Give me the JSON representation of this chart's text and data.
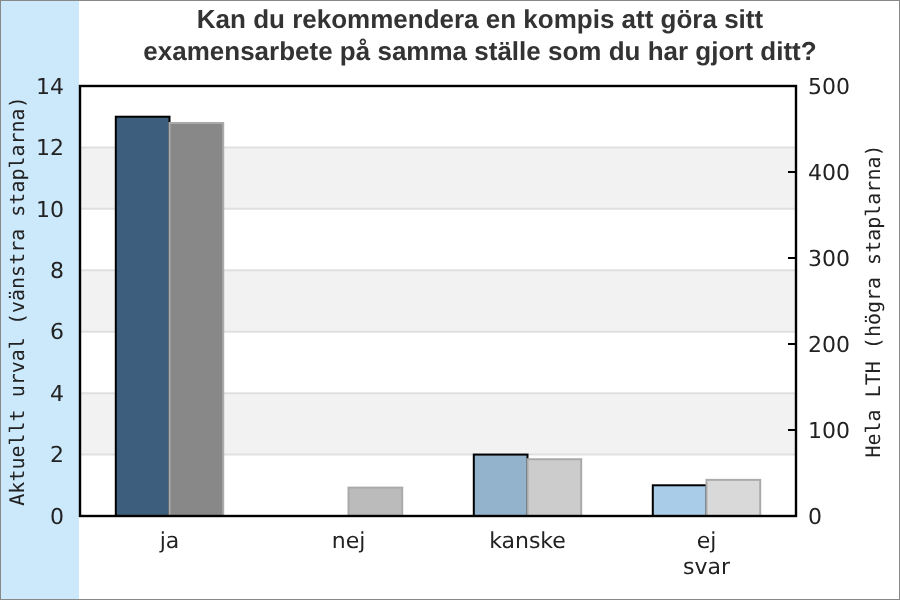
{
  "chart_data": {
    "type": "bar",
    "title": "Kan du rekommendera en kompis att göra sitt examensarbete på samma ställe som du har gjort ditt?",
    "ylabel": "Aktuellt urval (vänstra staplarna)",
    "y2label": "Hela LTH (högra staplarna)",
    "categories": [
      "ja",
      "nej",
      "kanske",
      "ej svar"
    ],
    "series": [
      {
        "values": [
          13,
          0,
          2,
          1
        ],
        "colors": [
          "#3d5f7d",
          "#3d5f7d",
          "#93b2cc",
          "#a9cde9"
        ]
      },
      {
        "values": [
          457,
          33,
          66,
          42
        ],
        "colors": [
          "#888888",
          "#bbbbbb",
          "#cccccc",
          "#d9d9d9"
        ],
        "axis": "y2"
      }
    ],
    "ylim": [
      0,
      14
    ],
    "yticks": [
      0,
      2,
      4,
      6,
      8,
      10,
      12,
      14
    ],
    "y2lim": [
      0,
      500
    ],
    "y2ticks": [
      0,
      100,
      200,
      300,
      400,
      500
    ],
    "grid": "y"
  }
}
